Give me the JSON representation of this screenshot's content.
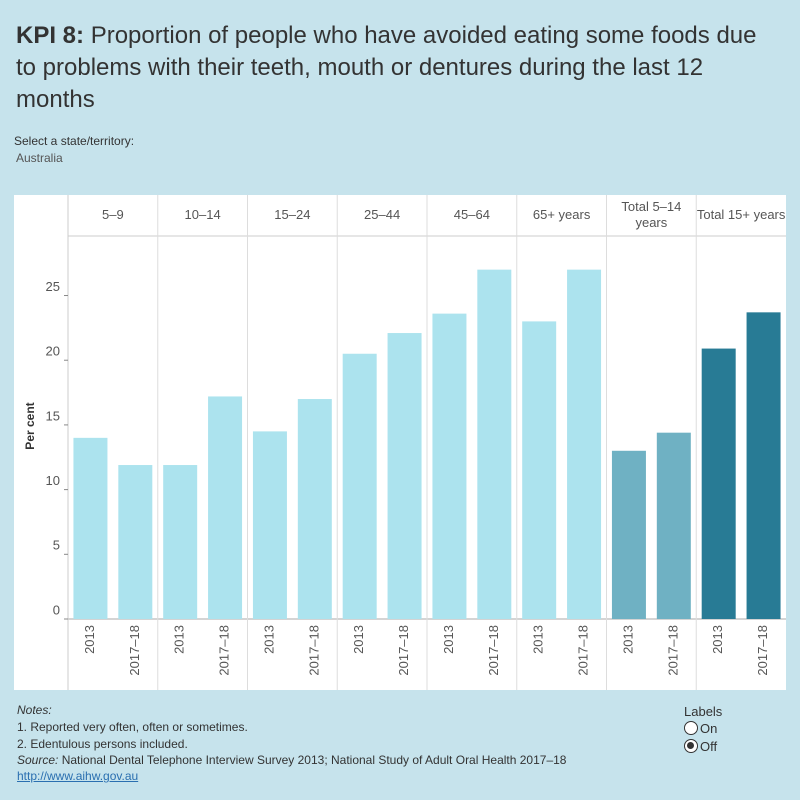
{
  "chart_data": {
    "type": "bar",
    "title_lead": "KPI 8:",
    "title": "Proportion of people who have avoided eating some foods due to problems with their teeth, mouth or dentures during the last 12 months",
    "y_label": "Per cent",
    "categories": [
      "5–9",
      "10–14",
      "15–24",
      "25–44",
      "45–64",
      "65+ years",
      "Total 5–14 years",
      "Total 15+ years"
    ],
    "sub_categories": [
      "2013",
      "2017–18"
    ],
    "values": [
      [
        14.0,
        11.9
      ],
      [
        11.9,
        17.2
      ],
      [
        14.5,
        17.0
      ],
      [
        20.5,
        22.1
      ],
      [
        23.6,
        27.0
      ],
      [
        23.0,
        27.0
      ],
      [
        13.0,
        14.4
      ],
      [
        20.9,
        23.7
      ]
    ],
    "colors": [
      "#ace3ee",
      "#ace3ee",
      "#ace3ee",
      "#ace3ee",
      "#ace3ee",
      "#ace3ee",
      "#6fb1c3",
      "#287b95"
    ],
    "ylim": [
      0,
      29.6
    ],
    "yticks": [
      0,
      5,
      10,
      15,
      20,
      25
    ]
  },
  "filter": {
    "label": "Select a state/territory:",
    "value": "Australia"
  },
  "notes": {
    "heading": "Notes:",
    "items": [
      "1. Reported very often, often or sometimes.",
      "2. Edentulous persons included."
    ],
    "source_label": "Source:",
    "source": "National Dental Telephone Interview Survey 2013; National Study of Adult Oral Health 2017–18",
    "link": "http://www.aihw.gov.au"
  },
  "labels_control": {
    "title": "Labels",
    "options": [
      "On",
      "Off"
    ],
    "selected": 1
  }
}
